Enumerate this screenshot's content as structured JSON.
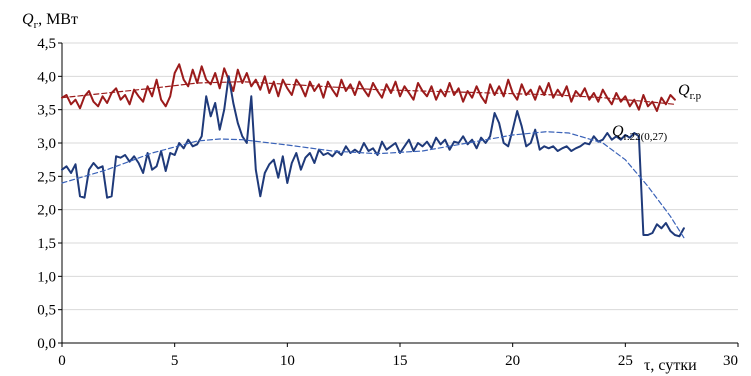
{
  "chart_data": {
    "type": "line",
    "ylabel_main": "Q",
    "ylabel_sub": "г",
    "ylabel_unit": ", МВт",
    "xlabel": "τ, сутки",
    "xlim": [
      0,
      30
    ],
    "ylim": [
      0,
      4.5
    ],
    "x_ticks": [
      "0",
      "5",
      "10",
      "15",
      "20",
      "25",
      "30"
    ],
    "y_ticks": [
      "0,0",
      "0,5",
      "1,0",
      "1,5",
      "2,0",
      "2,5",
      "3,0",
      "3,5",
      "4,0",
      "4,5"
    ],
    "grid": "horizontal",
    "series": [
      {
        "name_main": "Q",
        "name_sub": "г.р",
        "color": "#9b1b1b",
        "style": "solid",
        "points": [
          [
            0,
            3.68
          ],
          [
            0.2,
            3.72
          ],
          [
            0.4,
            3.58
          ],
          [
            0.6,
            3.65
          ],
          [
            0.8,
            3.52
          ],
          [
            1.0,
            3.7
          ],
          [
            1.2,
            3.78
          ],
          [
            1.4,
            3.62
          ],
          [
            1.6,
            3.55
          ],
          [
            1.8,
            3.7
          ],
          [
            2.0,
            3.6
          ],
          [
            2.2,
            3.75
          ],
          [
            2.4,
            3.82
          ],
          [
            2.6,
            3.65
          ],
          [
            2.8,
            3.72
          ],
          [
            3.0,
            3.58
          ],
          [
            3.2,
            3.8
          ],
          [
            3.4,
            3.7
          ],
          [
            3.6,
            3.62
          ],
          [
            3.8,
            3.85
          ],
          [
            4.0,
            3.7
          ],
          [
            4.2,
            3.95
          ],
          [
            4.4,
            3.65
          ],
          [
            4.6,
            3.55
          ],
          [
            4.8,
            3.7
          ],
          [
            5.0,
            4.05
          ],
          [
            5.2,
            4.18
          ],
          [
            5.4,
            3.95
          ],
          [
            5.6,
            3.85
          ],
          [
            5.8,
            4.1
          ],
          [
            6.0,
            3.9
          ],
          [
            6.2,
            4.15
          ],
          [
            6.4,
            3.95
          ],
          [
            6.6,
            3.88
          ],
          [
            6.8,
            4.05
          ],
          [
            7.0,
            3.82
          ],
          [
            7.2,
            4.12
          ],
          [
            7.4,
            3.95
          ],
          [
            7.6,
            3.78
          ],
          [
            7.8,
            4.1
          ],
          [
            8.0,
            3.9
          ],
          [
            8.2,
            4.05
          ],
          [
            8.4,
            3.85
          ],
          [
            8.6,
            3.95
          ],
          [
            8.8,
            3.8
          ],
          [
            9.0,
            4.0
          ],
          [
            9.2,
            3.75
          ],
          [
            9.4,
            3.92
          ],
          [
            9.6,
            3.7
          ],
          [
            9.8,
            3.95
          ],
          [
            10.0,
            3.82
          ],
          [
            10.2,
            3.72
          ],
          [
            10.4,
            3.95
          ],
          [
            10.6,
            3.85
          ],
          [
            10.8,
            3.7
          ],
          [
            11.0,
            3.92
          ],
          [
            11.2,
            3.78
          ],
          [
            11.4,
            3.88
          ],
          [
            11.6,
            3.68
          ],
          [
            11.8,
            3.92
          ],
          [
            12.0,
            3.8
          ],
          [
            12.2,
            3.7
          ],
          [
            12.4,
            3.95
          ],
          [
            12.6,
            3.78
          ],
          [
            12.8,
            3.88
          ],
          [
            13.0,
            3.72
          ],
          [
            13.2,
            3.92
          ],
          [
            13.4,
            3.8
          ],
          [
            13.6,
            3.7
          ],
          [
            13.8,
            3.9
          ],
          [
            14.0,
            3.78
          ],
          [
            14.2,
            3.68
          ],
          [
            14.4,
            3.88
          ],
          [
            14.6,
            3.75
          ],
          [
            14.8,
            3.92
          ],
          [
            15.0,
            3.7
          ],
          [
            15.2,
            3.85
          ],
          [
            15.4,
            3.75
          ],
          [
            15.6,
            3.65
          ],
          [
            15.8,
            3.9
          ],
          [
            16.0,
            3.78
          ],
          [
            16.2,
            3.7
          ],
          [
            16.4,
            3.85
          ],
          [
            16.6,
            3.65
          ],
          [
            16.8,
            3.8
          ],
          [
            17.0,
            3.7
          ],
          [
            17.2,
            3.9
          ],
          [
            17.4,
            3.72
          ],
          [
            17.6,
            3.82
          ],
          [
            17.8,
            3.62
          ],
          [
            18.0,
            3.78
          ],
          [
            18.2,
            3.68
          ],
          [
            18.4,
            3.85
          ],
          [
            18.6,
            3.7
          ],
          [
            18.8,
            3.6
          ],
          [
            19.0,
            3.88
          ],
          [
            19.2,
            3.72
          ],
          [
            19.4,
            3.85
          ],
          [
            19.6,
            3.7
          ],
          [
            19.8,
            3.95
          ],
          [
            20.0,
            3.75
          ],
          [
            20.2,
            3.65
          ],
          [
            20.4,
            3.88
          ],
          [
            20.6,
            3.72
          ],
          [
            20.8,
            3.8
          ],
          [
            21.0,
            3.65
          ],
          [
            21.2,
            3.85
          ],
          [
            21.4,
            3.72
          ],
          [
            21.6,
            3.9
          ],
          [
            21.8,
            3.68
          ],
          [
            22.0,
            3.8
          ],
          [
            22.2,
            3.7
          ],
          [
            22.4,
            3.85
          ],
          [
            22.6,
            3.62
          ],
          [
            22.8,
            3.78
          ],
          [
            23.0,
            3.7
          ],
          [
            23.2,
            3.82
          ],
          [
            23.4,
            3.65
          ],
          [
            23.6,
            3.75
          ],
          [
            23.8,
            3.62
          ],
          [
            24.0,
            3.8
          ],
          [
            24.2,
            3.68
          ],
          [
            24.4,
            3.58
          ],
          [
            24.6,
            3.75
          ],
          [
            24.8,
            3.62
          ],
          [
            25.0,
            3.7
          ],
          [
            25.2,
            3.55
          ],
          [
            25.4,
            3.65
          ],
          [
            25.6,
            3.5
          ],
          [
            25.8,
            3.72
          ],
          [
            26.0,
            3.55
          ],
          [
            26.2,
            3.62
          ],
          [
            26.4,
            3.48
          ],
          [
            26.6,
            3.68
          ],
          [
            26.8,
            3.58
          ],
          [
            27.0,
            3.72
          ],
          [
            27.2,
            3.65
          ]
        ]
      },
      {
        "name_main": "Q",
        "name_sub": "г.22(0,27)",
        "color": "#1f3a7a",
        "style": "solid",
        "points": [
          [
            0,
            2.6
          ],
          [
            0.2,
            2.65
          ],
          [
            0.4,
            2.55
          ],
          [
            0.6,
            2.68
          ],
          [
            0.8,
            2.2
          ],
          [
            1.0,
            2.18
          ],
          [
            1.2,
            2.6
          ],
          [
            1.4,
            2.7
          ],
          [
            1.6,
            2.62
          ],
          [
            1.8,
            2.65
          ],
          [
            2.0,
            2.18
          ],
          [
            2.2,
            2.2
          ],
          [
            2.4,
            2.8
          ],
          [
            2.6,
            2.78
          ],
          [
            2.8,
            2.82
          ],
          [
            3.0,
            2.72
          ],
          [
            3.2,
            2.8
          ],
          [
            3.4,
            2.7
          ],
          [
            3.6,
            2.55
          ],
          [
            3.8,
            2.85
          ],
          [
            4.0,
            2.6
          ],
          [
            4.2,
            2.65
          ],
          [
            4.4,
            2.88
          ],
          [
            4.6,
            2.58
          ],
          [
            4.8,
            2.85
          ],
          [
            5.0,
            2.82
          ],
          [
            5.2,
            3.0
          ],
          [
            5.4,
            2.92
          ],
          [
            5.6,
            3.05
          ],
          [
            5.8,
            2.95
          ],
          [
            6.0,
            2.98
          ],
          [
            6.2,
            3.1
          ],
          [
            6.4,
            3.7
          ],
          [
            6.6,
            3.4
          ],
          [
            6.8,
            3.6
          ],
          [
            7.0,
            3.2
          ],
          [
            7.2,
            3.5
          ],
          [
            7.4,
            4.0
          ],
          [
            7.6,
            3.6
          ],
          [
            7.8,
            3.3
          ],
          [
            8.0,
            3.1
          ],
          [
            8.2,
            3.0
          ],
          [
            8.4,
            3.7
          ],
          [
            8.6,
            2.6
          ],
          [
            8.8,
            2.2
          ],
          [
            9.0,
            2.55
          ],
          [
            9.2,
            2.68
          ],
          [
            9.4,
            2.75
          ],
          [
            9.6,
            2.48
          ],
          [
            9.8,
            2.8
          ],
          [
            10.0,
            2.4
          ],
          [
            10.2,
            2.7
          ],
          [
            10.4,
            2.85
          ],
          [
            10.6,
            2.6
          ],
          [
            10.8,
            2.78
          ],
          [
            11.0,
            2.85
          ],
          [
            11.2,
            2.7
          ],
          [
            11.4,
            2.9
          ],
          [
            11.6,
            2.82
          ],
          [
            11.8,
            2.85
          ],
          [
            12.0,
            2.8
          ],
          [
            12.2,
            2.88
          ],
          [
            12.4,
            2.82
          ],
          [
            12.6,
            2.95
          ],
          [
            12.8,
            2.85
          ],
          [
            13.0,
            2.9
          ],
          [
            13.2,
            2.85
          ],
          [
            13.4,
            3.0
          ],
          [
            13.6,
            2.88
          ],
          [
            13.8,
            2.92
          ],
          [
            14.0,
            2.82
          ],
          [
            14.2,
            3.02
          ],
          [
            14.4,
            2.9
          ],
          [
            14.6,
            2.95
          ],
          [
            14.8,
            3.0
          ],
          [
            15.0,
            2.85
          ],
          [
            15.2,
            2.95
          ],
          [
            15.4,
            3.05
          ],
          [
            15.6,
            2.88
          ],
          [
            15.8,
            3.0
          ],
          [
            16.0,
            2.95
          ],
          [
            16.2,
            3.02
          ],
          [
            16.4,
            2.92
          ],
          [
            16.6,
            3.08
          ],
          [
            16.8,
            2.98
          ],
          [
            17.0,
            3.05
          ],
          [
            17.2,
            2.9
          ],
          [
            17.4,
            3.02
          ],
          [
            17.6,
            3.0
          ],
          [
            17.8,
            3.1
          ],
          [
            18.0,
            2.98
          ],
          [
            18.2,
            3.05
          ],
          [
            18.4,
            2.92
          ],
          [
            18.6,
            3.08
          ],
          [
            18.8,
            3.0
          ],
          [
            19.0,
            3.1
          ],
          [
            19.2,
            3.45
          ],
          [
            19.4,
            3.3
          ],
          [
            19.6,
            3.0
          ],
          [
            19.8,
            2.95
          ],
          [
            20.0,
            3.2
          ],
          [
            20.2,
            3.48
          ],
          [
            20.4,
            3.25
          ],
          [
            20.6,
            2.95
          ],
          [
            20.8,
            3.0
          ],
          [
            21.0,
            3.2
          ],
          [
            21.2,
            2.9
          ],
          [
            21.4,
            2.95
          ],
          [
            21.6,
            2.92
          ],
          [
            21.8,
            2.95
          ],
          [
            22.0,
            2.88
          ],
          [
            22.2,
            2.92
          ],
          [
            22.4,
            2.95
          ],
          [
            22.6,
            2.88
          ],
          [
            22.8,
            2.92
          ],
          [
            23.0,
            2.95
          ],
          [
            23.2,
            3.0
          ],
          [
            23.4,
            2.98
          ],
          [
            23.6,
            3.1
          ],
          [
            23.8,
            3.02
          ],
          [
            24.0,
            3.05
          ],
          [
            24.2,
            3.15
          ],
          [
            24.4,
            3.05
          ],
          [
            24.6,
            3.1
          ],
          [
            24.8,
            3.05
          ],
          [
            25.0,
            3.12
          ],
          [
            25.2,
            3.08
          ],
          [
            25.4,
            3.15
          ],
          [
            25.6,
            3.1
          ],
          [
            25.8,
            1.62
          ],
          [
            26.0,
            1.62
          ],
          [
            26.2,
            1.65
          ],
          [
            26.4,
            1.78
          ],
          [
            26.6,
            1.72
          ],
          [
            26.8,
            1.8
          ],
          [
            27.0,
            1.68
          ],
          [
            27.2,
            1.62
          ],
          [
            27.4,
            1.6
          ],
          [
            27.6,
            1.72
          ]
        ]
      },
      {
        "name": "",
        "color": "#9b1b1b",
        "style": "dashed",
        "points": [
          [
            0,
            3.68
          ],
          [
            2,
            3.75
          ],
          [
            4,
            3.82
          ],
          [
            6,
            3.9
          ],
          [
            8,
            3.92
          ],
          [
            10,
            3.88
          ],
          [
            12,
            3.84
          ],
          [
            14,
            3.8
          ],
          [
            16,
            3.78
          ],
          [
            18,
            3.76
          ],
          [
            20,
            3.74
          ],
          [
            22,
            3.72
          ],
          [
            24,
            3.68
          ],
          [
            26,
            3.62
          ],
          [
            27.2,
            3.58
          ]
        ]
      },
      {
        "name": "",
        "color": "#3b63b8",
        "style": "dashed",
        "points": [
          [
            0,
            2.4
          ],
          [
            2,
            2.6
          ],
          [
            4,
            2.85
          ],
          [
            6,
            3.03
          ],
          [
            7,
            3.06
          ],
          [
            8,
            3.05
          ],
          [
            10,
            2.97
          ],
          [
            12,
            2.88
          ],
          [
            14,
            2.84
          ],
          [
            16,
            2.88
          ],
          [
            18,
            3.0
          ],
          [
            20,
            3.12
          ],
          [
            21.5,
            3.17
          ],
          [
            22.5,
            3.15
          ],
          [
            24,
            3.0
          ],
          [
            25,
            2.75
          ],
          [
            26,
            2.35
          ],
          [
            27,
            1.9
          ],
          [
            27.6,
            1.58
          ]
        ]
      }
    ]
  }
}
